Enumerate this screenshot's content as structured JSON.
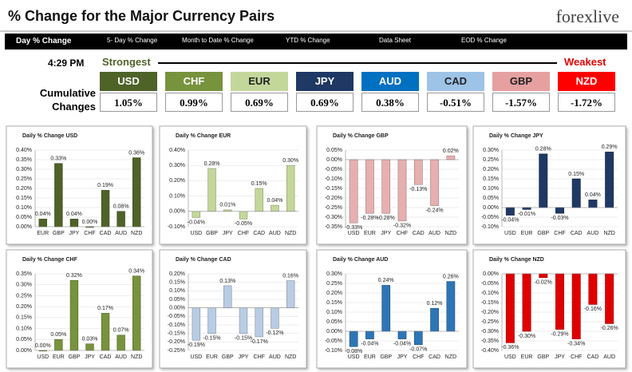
{
  "header": {
    "title": "% Change for the Major Currency Pairs",
    "logo": "forexlive",
    "time": "4:29 PM",
    "strongest": "Strongest",
    "weakest": "Weakest"
  },
  "nav": [
    "Day % Change",
    "5- Day % Change",
    "Month to Date % Change",
    "YTD % Change",
    "Data Sheet",
    "EOD % Change"
  ],
  "cumulative": {
    "label": "Cumulative Changes",
    "items": [
      {
        "name": "USD",
        "value": "1.05%",
        "color": "#4f6228"
      },
      {
        "name": "CHF",
        "value": "0.99%",
        "color": "#77933c"
      },
      {
        "name": "EUR",
        "value": "0.69%",
        "color": "#c4d79b"
      },
      {
        "name": "JPY",
        "value": "0.69%",
        "color": "#1f3864"
      },
      {
        "name": "AUD",
        "value": "0.38%",
        "color": "#0070c0"
      },
      {
        "name": "CAD",
        "value": "-0.51%",
        "color": "#9dc3e6"
      },
      {
        "name": "GBP",
        "value": "-1.57%",
        "color": "#e6a0a0"
      },
      {
        "name": "NZD",
        "value": "-1.72%",
        "color": "#ff0000"
      }
    ]
  },
  "chart_data": [
    {
      "type": "bar",
      "title": "Daily % Change USD",
      "color": "#4f6228",
      "categories": [
        "EUR",
        "GBP",
        "JPY",
        "CHF",
        "CAD",
        "AUD",
        "NZD"
      ],
      "values": [
        0.04,
        0.33,
        0.04,
        0.0,
        0.19,
        0.08,
        0.36
      ],
      "value_labels": [
        "0.04%",
        "0.33%",
        "0.04%",
        "0.00%",
        "0.19%",
        "0.08%",
        "0.36%"
      ],
      "ylim": [
        0,
        0.4
      ],
      "yticks": [
        {
          "value": 0,
          "label": "0.00%"
        },
        {
          "value": 0.05,
          "label": "0.05%"
        },
        {
          "value": 0.1,
          "label": "0.10%"
        },
        {
          "value": 0.15,
          "label": "0.15%"
        },
        {
          "value": 0.2,
          "label": "0.20%"
        },
        {
          "value": 0.25,
          "label": "0.25%"
        },
        {
          "value": 0.3,
          "label": "0.30%"
        },
        {
          "value": 0.35,
          "label": "0.35%"
        },
        {
          "value": 0.4,
          "label": "0.40%"
        }
      ]
    },
    {
      "type": "bar",
      "title": "Daily % Change EUR",
      "color": "#c4d79b",
      "categories": [
        "USD",
        "GBP",
        "JPY",
        "CHF",
        "CAD",
        "AUD",
        "NZD"
      ],
      "values": [
        -0.04,
        0.28,
        0.01,
        -0.05,
        0.15,
        0.04,
        0.3
      ],
      "value_labels": [
        "-0.04%",
        "0.28%",
        "0.01%",
        "-0.05%",
        "0.15%",
        "0.04%",
        "0.30%"
      ],
      "ylim": [
        -0.1,
        0.4
      ],
      "yticks": [
        {
          "value": -0.1,
          "label": "-0.10%"
        },
        {
          "value": 0,
          "label": "0.00%"
        },
        {
          "value": 0.1,
          "label": "0.10%"
        },
        {
          "value": 0.2,
          "label": "0.20%"
        },
        {
          "value": 0.3,
          "label": "0.30%"
        },
        {
          "value": 0.4,
          "label": "0.40%"
        }
      ]
    },
    {
      "type": "bar",
      "title": "Daily % Change GBP",
      "color": "#e6b0b0",
      "categories": [
        "USD",
        "EUR",
        "JPY",
        "CHF",
        "CAD",
        "AUD",
        "NZD"
      ],
      "values": [
        -0.33,
        -0.28,
        -0.28,
        -0.32,
        -0.13,
        -0.24,
        0.02
      ],
      "value_labels": [
        "-0.33%",
        "-0.28%",
        "-0.28%",
        "-0.32%",
        "-0.13%",
        "-0.24%",
        "0.02%"
      ],
      "ylim": [
        -0.35,
        0.05
      ],
      "yticks": [
        {
          "value": -0.35,
          "label": "-0.35%"
        },
        {
          "value": -0.3,
          "label": "-0.30%"
        },
        {
          "value": -0.25,
          "label": "-0.25%"
        },
        {
          "value": -0.2,
          "label": "-0.20%"
        },
        {
          "value": -0.15,
          "label": "-0.15%"
        },
        {
          "value": -0.1,
          "label": "-0.10%"
        },
        {
          "value": -0.05,
          "label": "-0.05%"
        },
        {
          "value": 0,
          "label": "0.00%"
        },
        {
          "value": 0.05,
          "label": "0.05%"
        }
      ]
    },
    {
      "type": "bar",
      "title": "Daily % Change JPY",
      "color": "#1f3864",
      "categories": [
        "USD",
        "EUR",
        "GBP",
        "CHF",
        "CAD",
        "AUD",
        "NZD"
      ],
      "values": [
        -0.04,
        -0.01,
        0.28,
        -0.03,
        0.15,
        0.04,
        0.29
      ],
      "value_labels": [
        "-0.04%",
        "-0.01%",
        "0.28%",
        "-0.03%",
        "0.15%",
        "0.04%",
        "0.29%"
      ],
      "ylim": [
        -0.1,
        0.3
      ],
      "yticks": [
        {
          "value": -0.1,
          "label": "-0.10%"
        },
        {
          "value": -0.05,
          "label": "-0.05%"
        },
        {
          "value": 0,
          "label": "0.00%"
        },
        {
          "value": 0.05,
          "label": "0.05%"
        },
        {
          "value": 0.1,
          "label": "0.10%"
        },
        {
          "value": 0.15,
          "label": "0.15%"
        },
        {
          "value": 0.2,
          "label": "0.20%"
        },
        {
          "value": 0.25,
          "label": "0.25%"
        },
        {
          "value": 0.3,
          "label": "0.30%"
        }
      ]
    },
    {
      "type": "bar",
      "title": "Daily % Change CHF",
      "color": "#77933c",
      "categories": [
        "USD",
        "EUR",
        "GBP",
        "JPY",
        "CAD",
        "AUD",
        "NZD"
      ],
      "values": [
        0.0,
        0.05,
        0.32,
        0.03,
        0.17,
        0.07,
        0.34
      ],
      "value_labels": [
        "0.00%",
        "0.05%",
        "0.32%",
        "0.03%",
        "0.17%",
        "0.07%",
        "0.34%"
      ],
      "ylim": [
        0,
        0.35
      ],
      "yticks": [
        {
          "value": 0,
          "label": "0.00%"
        },
        {
          "value": 0.05,
          "label": "0.05%"
        },
        {
          "value": 0.1,
          "label": "0.10%"
        },
        {
          "value": 0.15,
          "label": "0.15%"
        },
        {
          "value": 0.2,
          "label": "0.20%"
        },
        {
          "value": 0.25,
          "label": "0.25%"
        },
        {
          "value": 0.3,
          "label": "0.30%"
        },
        {
          "value": 0.35,
          "label": "0.35%"
        }
      ]
    },
    {
      "type": "bar",
      "title": "Daily % Change CAD",
      "color": "#b8cce4",
      "categories": [
        "USD",
        "EUR",
        "GBP",
        "JPY",
        "CHF",
        "AUD",
        "NZD"
      ],
      "values": [
        -0.19,
        -0.15,
        0.13,
        -0.15,
        -0.17,
        -0.12,
        0.16
      ],
      "value_labels": [
        "-0.19%",
        "-0.15%",
        "0.13%",
        "-0.15%",
        "-0.17%",
        "-0.12%",
        "0.16%"
      ],
      "ylim": [
        -0.25,
        0.2
      ],
      "yticks": [
        {
          "value": -0.25,
          "label": "-0.25%"
        },
        {
          "value": -0.2,
          "label": "-0.20%"
        },
        {
          "value": -0.15,
          "label": "-0.15%"
        },
        {
          "value": -0.1,
          "label": "-0.10%"
        },
        {
          "value": -0.05,
          "label": "-0.05%"
        },
        {
          "value": 0,
          "label": "0.00%"
        },
        {
          "value": 0.05,
          "label": "0.05%"
        },
        {
          "value": 0.1,
          "label": "0.10%"
        },
        {
          "value": 0.15,
          "label": "0.15%"
        },
        {
          "value": 0.2,
          "label": "0.20%"
        }
      ]
    },
    {
      "type": "bar",
      "title": "Daily % Change AUD",
      "color": "#2e75b6",
      "categories": [
        "USD",
        "EUR",
        "GBP",
        "JPY",
        "CHF",
        "CAD",
        "NZD"
      ],
      "values": [
        -0.08,
        -0.04,
        0.24,
        -0.04,
        -0.07,
        0.12,
        0.26
      ],
      "value_labels": [
        "-0.08%",
        "-0.04%",
        "0.24%",
        "-0.04%",
        "-0.07%",
        "0.12%",
        "0.26%"
      ],
      "ylim": [
        -0.1,
        0.3
      ],
      "yticks": [
        {
          "value": -0.1,
          "label": "-0.10%"
        },
        {
          "value": -0.05,
          "label": "-0.05%"
        },
        {
          "value": 0,
          "label": "0.00%"
        },
        {
          "value": 0.05,
          "label": "0.05%"
        },
        {
          "value": 0.1,
          "label": "0.10%"
        },
        {
          "value": 0.15,
          "label": "0.15%"
        },
        {
          "value": 0.2,
          "label": "0.20%"
        },
        {
          "value": 0.25,
          "label": "0.25%"
        },
        {
          "value": 0.3,
          "label": "0.30%"
        }
      ]
    },
    {
      "type": "bar",
      "title": "Daily % Change NZD",
      "color": "#e00000",
      "categories": [
        "USD",
        "EUR",
        "GBP",
        "JPY",
        "CHF",
        "CAD",
        "AUD"
      ],
      "values": [
        -0.36,
        -0.3,
        -0.02,
        -0.29,
        -0.34,
        -0.16,
        -0.26
      ],
      "value_labels": [
        "-0.36%",
        "-0.30%",
        "-0.02%",
        "-0.29%",
        "-0.34%",
        "-0.16%",
        "-0.26%"
      ],
      "ylim": [
        -0.4,
        0
      ],
      "yticks": [
        {
          "value": -0.4,
          "label": "-0.40%"
        },
        {
          "value": -0.35,
          "label": "-0.35%"
        },
        {
          "value": -0.3,
          "label": "-0.30%"
        },
        {
          "value": -0.25,
          "label": "-0.25%"
        },
        {
          "value": -0.2,
          "label": "-0.20%"
        },
        {
          "value": -0.15,
          "label": "-0.15%"
        },
        {
          "value": -0.1,
          "label": "-0.10%"
        },
        {
          "value": -0.05,
          "label": "-0.05%"
        },
        {
          "value": 0,
          "label": "0.00%"
        }
      ]
    }
  ]
}
